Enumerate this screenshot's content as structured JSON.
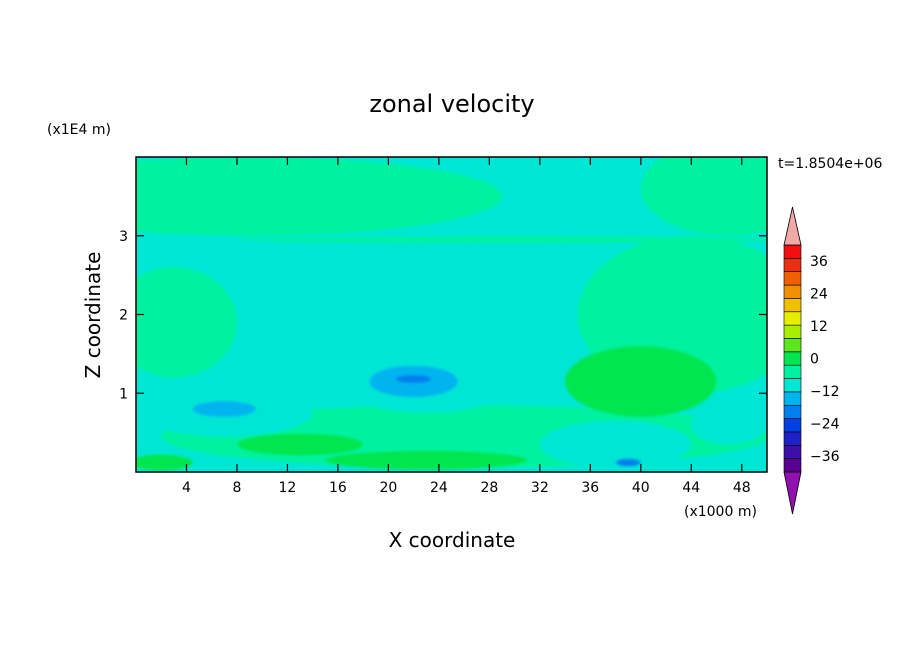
{
  "chart_data": {
    "type": "heatmap",
    "title": "zonal velocity",
    "xlabel": "X coordinate",
    "ylabel": "Z coordinate",
    "x_scale_label": "(x1000 m)",
    "y_scale_label": "(x1E4 m)",
    "time_label": "t=1.8504e+06",
    "xlim": [
      0,
      50
    ],
    "ylim": [
      0,
      4
    ],
    "x_ticks": [
      4,
      8,
      12,
      16,
      20,
      24,
      28,
      32,
      36,
      40,
      44,
      48
    ],
    "x_tick_labels": [
      "4",
      "8",
      "12",
      "16",
      "20",
      "24",
      "28",
      "32",
      "36",
      "40",
      "44",
      "48"
    ],
    "y_ticks": [
      1,
      2,
      3
    ],
    "y_tick_labels": [
      "1",
      "2",
      "3"
    ],
    "colorbar": {
      "min": -42,
      "max": 42,
      "step": 6,
      "labeled_levels": [
        36,
        24,
        12,
        0,
        -12,
        -24,
        -36
      ],
      "labels": [
        "36",
        "24",
        "12",
        "0",
        "−12",
        "−24",
        "−36"
      ],
      "colors": [
        "#5a0090",
        "#3c10a8",
        "#2020c8",
        "#0040e0",
        "#0080ee",
        "#00b4f0",
        "#00e6d4",
        "#00f2a0",
        "#00e650",
        "#5ce61c",
        "#a8ee00",
        "#e6ee00",
        "#f0c000",
        "#f09000",
        "#f06000",
        "#e83010",
        "#f01010"
      ],
      "over_color": "#f0a8a8",
      "under_color": "#9010b0"
    },
    "field": {
      "background_level": 0,
      "regions": [
        {
          "level": 3,
          "x": 9,
          "z": 3.5,
          "rx": 20,
          "rz": 0.5
        },
        {
          "level": 3,
          "x": 47,
          "z": 3.6,
          "rx": 7,
          "rz": 0.6
        },
        {
          "level": 3,
          "x": 44,
          "z": 2.0,
          "rx": 9,
          "rz": 1.0
        },
        {
          "level": 3,
          "x": 3,
          "z": 1.9,
          "rx": 5,
          "rz": 0.7
        },
        {
          "level": 3,
          "x": 26,
          "z": 0.45,
          "rx": 24,
          "rz": 0.4
        },
        {
          "level": 3,
          "x": 30,
          "z": 2.95,
          "rx": 22,
          "rz": 0.04
        },
        {
          "level": 9,
          "x": 40,
          "z": 1.15,
          "rx": 6,
          "rz": 0.45
        },
        {
          "level": 9,
          "x": 13,
          "z": 0.35,
          "rx": 5,
          "rz": 0.14
        },
        {
          "level": 9,
          "x": 23,
          "z": 0.15,
          "rx": 8,
          "rz": 0.12
        },
        {
          "level": 9,
          "x": 2,
          "z": 0.12,
          "rx": 2.5,
          "rz": 0.1
        },
        {
          "level": -3,
          "x": 23,
          "z": 1.3,
          "rx": 8,
          "rz": 0.55
        },
        {
          "level": -3,
          "x": 7,
          "z": 0.75,
          "rx": 7,
          "rz": 0.3
        },
        {
          "level": -3,
          "x": 38,
          "z": 0.35,
          "rx": 6,
          "rz": 0.3
        },
        {
          "level": -3,
          "x": 47,
          "z": 0.6,
          "rx": 3,
          "rz": 0.25
        },
        {
          "level": -9,
          "x": 22,
          "z": 1.15,
          "rx": 3.5,
          "rz": 0.2
        },
        {
          "level": -9,
          "x": 7,
          "z": 0.8,
          "rx": 2.5,
          "rz": 0.1
        },
        {
          "level": -15,
          "x": 22,
          "z": 1.18,
          "rx": 1.4,
          "rz": 0.05
        },
        {
          "level": -15,
          "x": 39,
          "z": 0.12,
          "rx": 1,
          "rz": 0.05
        }
      ]
    }
  }
}
